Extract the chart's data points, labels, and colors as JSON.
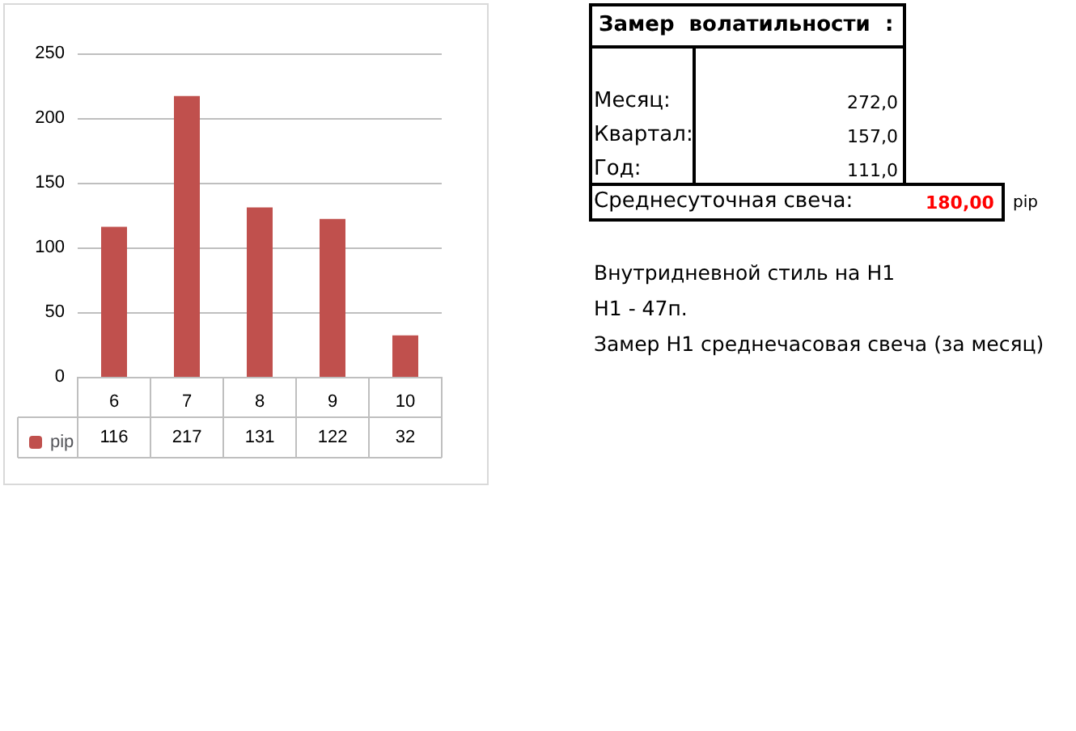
{
  "chart_data": [
    {
      "type": "bar",
      "categories": [
        "6",
        "7",
        "8",
        "9",
        "10"
      ],
      "series": [
        {
          "name": "pip",
          "color": "#c0504d",
          "values": [
            116,
            217,
            131,
            122,
            32
          ]
        }
      ],
      "ylim": [
        0,
        250
      ],
      "yticks": [
        0,
        50,
        100,
        150,
        200,
        250
      ],
      "grid": "y",
      "legend": "bottom",
      "data_labels": true
    },
    {
      "type": "other",
      "title": "Замер  волатильности  :",
      "annotations": [
        "Месяц:",
        "272,0",
        "Квартал:",
        "157,0",
        "Год:",
        "111,0",
        "Среднесуточная свеча:",
        "180,00",
        "pip",
        "Внутридневной стиль на H1",
        "H1 - 47п.",
        "Замер H1 среднечасовая свеча (за месяц)"
      ]
    }
  ]
}
